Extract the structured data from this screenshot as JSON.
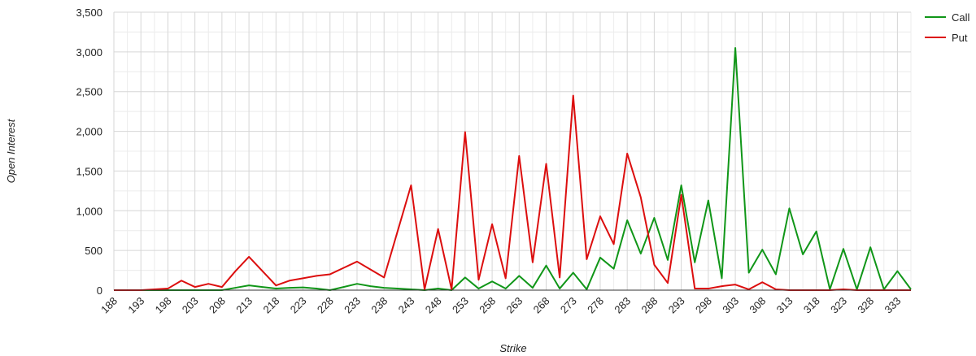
{
  "chart_data": {
    "type": "line",
    "xlabel": "Strike",
    "ylabel": "Open Interest",
    "x": [
      188,
      190,
      193,
      195,
      198,
      200,
      203,
      205,
      208,
      210,
      213,
      215,
      218,
      220,
      223,
      225,
      228,
      230,
      233,
      235,
      238,
      240,
      243,
      245,
      248,
      250,
      253,
      255,
      258,
      260,
      263,
      265,
      268,
      270,
      273,
      275,
      278,
      280,
      283,
      285,
      288,
      290,
      293,
      295,
      298,
      300,
      303,
      305,
      308,
      310,
      313,
      315,
      318,
      320,
      323,
      325,
      328,
      330,
      333,
      335
    ],
    "x_tick_labels": [
      "188",
      "193",
      "198",
      "203",
      "208",
      "213",
      "218",
      "223",
      "228",
      "233",
      "238",
      "243",
      "248",
      "253",
      "258",
      "263",
      "268",
      "273",
      "278",
      "283",
      "288",
      "293",
      "298",
      "303",
      "308",
      "313",
      "318",
      "323",
      "328",
      "333"
    ],
    "ylim": [
      0,
      3500
    ],
    "y_ticks": [
      0,
      500,
      1000,
      1500,
      2000,
      2500,
      3000,
      3500
    ],
    "y_tick_labels": [
      "0",
      "500",
      "1,000",
      "1,500",
      "2,000",
      "2,500",
      "3,000",
      "3,500"
    ],
    "grid": true,
    "legend_position": "top-right",
    "series": [
      {
        "name": "Call",
        "color": "#109618",
        "values": [
          0,
          0,
          0,
          0,
          0,
          0,
          0,
          0,
          0,
          30,
          60,
          40,
          20,
          30,
          35,
          20,
          0,
          40,
          80,
          50,
          30,
          20,
          10,
          0,
          20,
          0,
          160,
          20,
          110,
          20,
          180,
          30,
          310,
          20,
          220,
          10,
          410,
          270,
          880,
          460,
          910,
          380,
          1320,
          350,
          1130,
          150,
          3050,
          220,
          510,
          200,
          1030,
          450,
          740,
          10,
          520,
          10,
          540,
          10,
          240,
          10
        ]
      },
      {
        "name": "Put",
        "color": "#dc0e0e",
        "values": [
          0,
          0,
          0,
          10,
          20,
          120,
          40,
          80,
          40,
          240,
          420,
          240,
          60,
          120,
          150,
          180,
          200,
          280,
          360,
          260,
          160,
          740,
          1320,
          10,
          770,
          10,
          1990,
          130,
          830,
          150,
          1690,
          350,
          1590,
          160,
          2450,
          390,
          930,
          580,
          1720,
          1170,
          320,
          90,
          1200,
          20,
          20,
          50,
          70,
          10,
          100,
          10,
          0,
          0,
          0,
          0,
          10,
          0,
          0,
          0,
          0,
          0
        ]
      }
    ]
  }
}
